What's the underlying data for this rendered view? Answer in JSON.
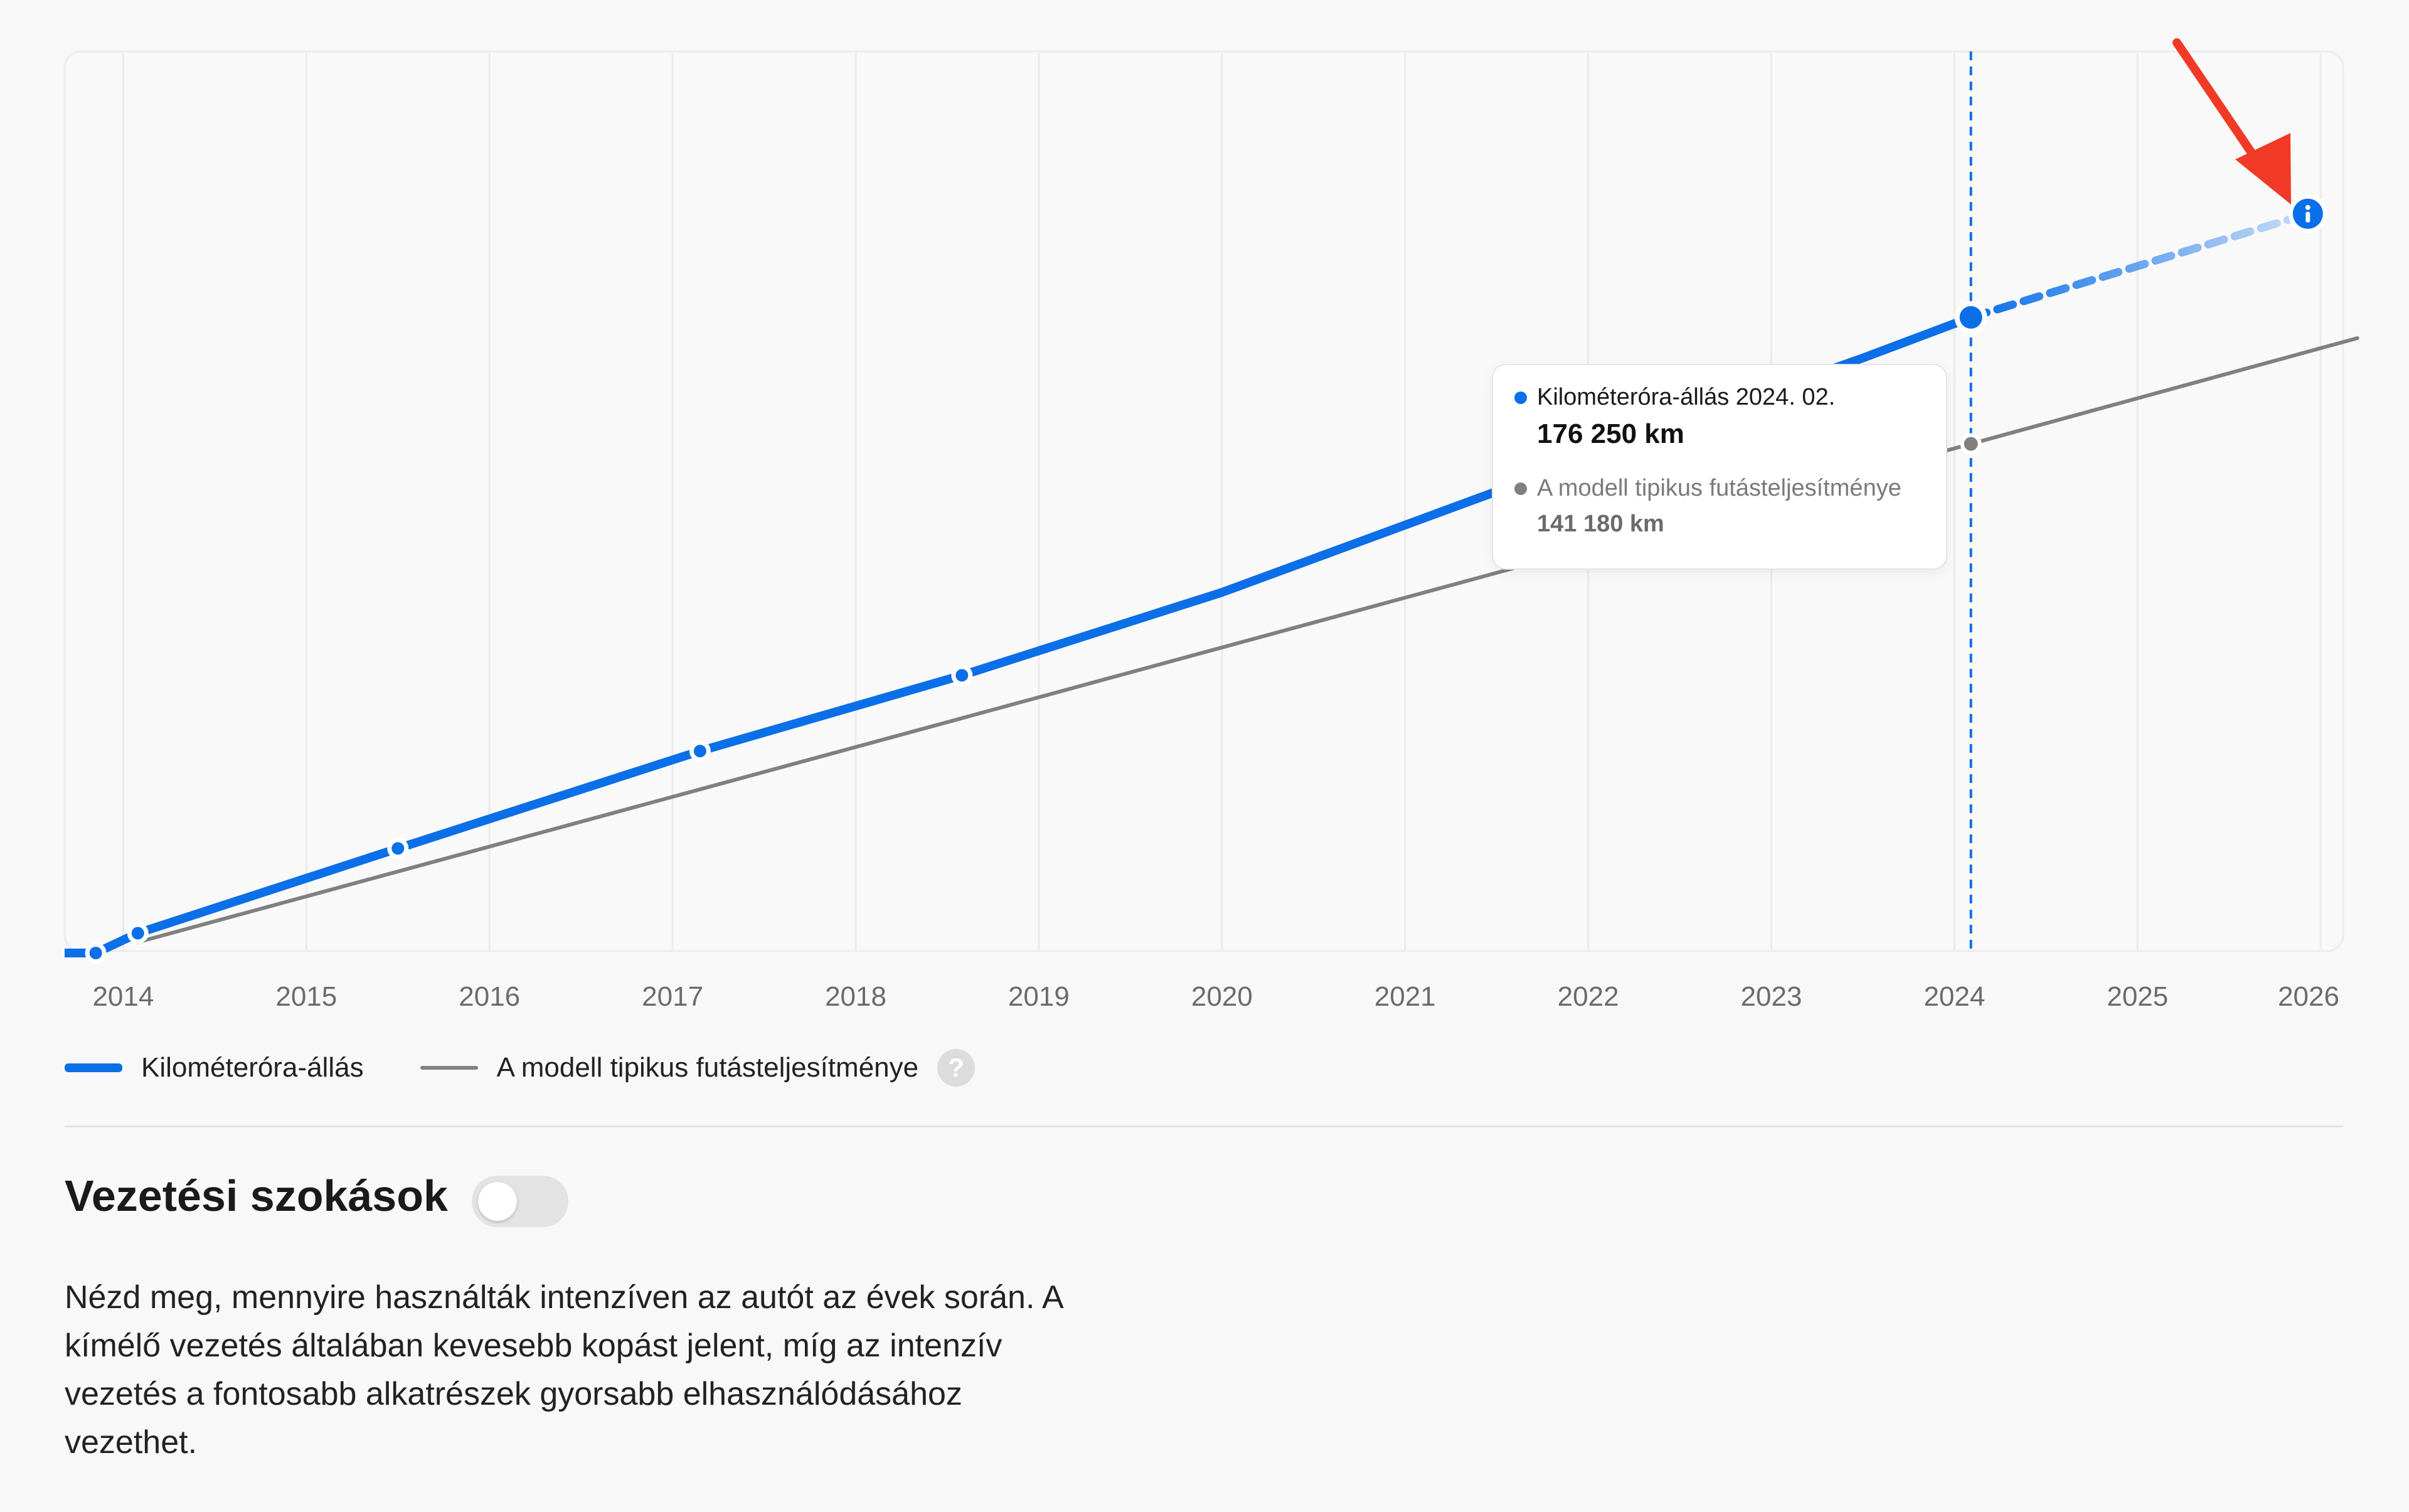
{
  "chart_data": {
    "type": "line",
    "title": "",
    "xlabel": "",
    "ylabel": "",
    "x_ticks": [
      "2014",
      "2015",
      "2016",
      "2017",
      "2018",
      "2019",
      "2020",
      "2021",
      "2022",
      "2023",
      "2024",
      "2025",
      "2026"
    ],
    "xlim": [
      2013.68,
      2026.2
    ],
    "ylim": [
      0,
      250000
    ],
    "grid": "vertical",
    "legend_position": "bottom-left",
    "series": [
      {
        "name": "Kilométeróra-állás",
        "color": "#0b6fe8",
        "style": "solid-thick",
        "points": [
          {
            "x": 2013.85,
            "y": 0
          },
          {
            "x": 2014.08,
            "y": 5500
          },
          {
            "x": 2015.5,
            "y": 29000
          },
          {
            "x": 2017.15,
            "y": 56000
          },
          {
            "x": 2018.58,
            "y": 77000
          },
          {
            "x": 2020.0,
            "y": 100000
          },
          {
            "x": 2021.5,
            "y": 128000
          },
          {
            "x": 2022.5,
            "y": 147000
          },
          {
            "x": 2023.5,
            "y": 165000
          },
          {
            "x": 2024.09,
            "y": 176250
          }
        ],
        "markers": [
          2013.85,
          2014.08,
          2015.5,
          2017.15,
          2018.58,
          2024.09
        ],
        "projection": [
          {
            "x": 2024.09,
            "y": 176250
          },
          {
            "x": 2025.93,
            "y": 205000
          }
        ]
      },
      {
        "name": "A modell tipikus futásteljesítménye",
        "color": "#808080",
        "style": "solid-thin",
        "points": [
          {
            "x": 2014.08,
            "y": 3000
          },
          {
            "x": 2024.09,
            "y": 141180
          },
          {
            "x": 2026.2,
            "y": 170500
          }
        ],
        "markers": [
          2024.09
        ]
      }
    ],
    "cursor_x": 2024.09,
    "info_marker": {
      "x": 2025.93,
      "y": 205000,
      "icon": "info-icon"
    },
    "annotation_arrow": {
      "color": "#f03a26",
      "points_to": "info-icon"
    }
  },
  "tooltip": {
    "series1_label": "Kilométeróra-állás 2024. 02.",
    "series1_value": "176 250 km",
    "series1_color": "#0b6fe8",
    "series2_label": "A modell tipikus futásteljesítménye",
    "series2_value": "141 180 km",
    "series2_color": "#808080"
  },
  "legend": {
    "items": [
      "Kilométeróra-állás",
      "A modell tipikus futásteljesítménye"
    ],
    "help_icon": "?"
  },
  "section": {
    "title": "Vezetési szokások",
    "toggle_on": false,
    "description_lines": [
      "Nézd meg, mennyire használták intenzíven az autót az évek során. A",
      "kímélő vezetés általában kevesebb kopást jelent, míg az intenzív",
      "vezetés a fontosabb alkatrészek gyorsabb elhasználódásához",
      "vezethet."
    ]
  }
}
